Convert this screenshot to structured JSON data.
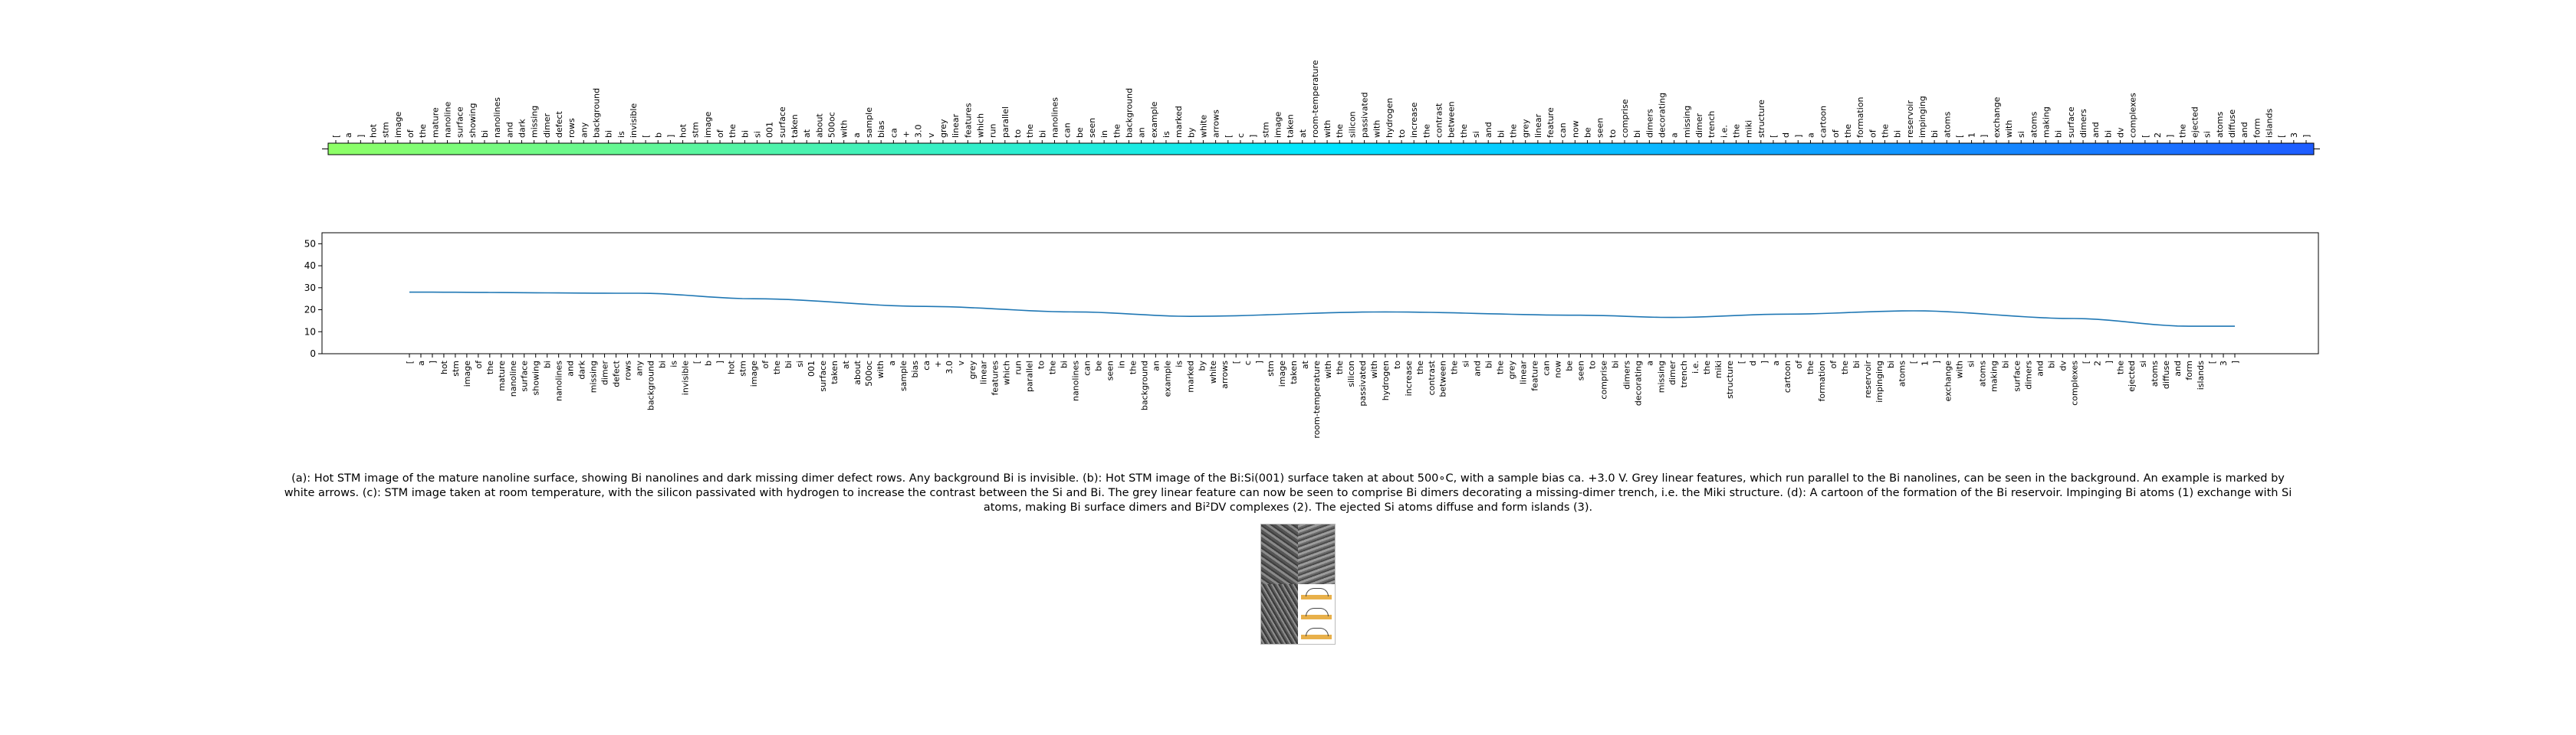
{
  "chart_data": [
    {
      "type": "colorbar",
      "colormap": "jet (green to blue segment)",
      "tick_labels": [
        "[",
        "a",
        "]",
        "hot",
        "stm",
        "image",
        "of",
        "the",
        "mature",
        "nanoline",
        "surface",
        "showing",
        "bi",
        "nanolines",
        "and",
        "dark",
        "missing",
        "dimer",
        "defect",
        "rows",
        "any",
        "background",
        "bi",
        "is",
        "invisible",
        "[",
        "b",
        "]",
        "hot",
        "stm",
        "image",
        "of",
        "the",
        "bi",
        "si",
        "001",
        "surface",
        "taken",
        "at",
        "about",
        "500oc",
        "with",
        "a",
        "sample",
        "bias",
        "ca",
        "+",
        "3.0",
        "v",
        "grey",
        "linear",
        "features",
        "which",
        "run",
        "parallel",
        "to",
        "the",
        "bi",
        "nanolines",
        "can",
        "be",
        "seen",
        "in",
        "the",
        "background",
        "an",
        "example",
        "is",
        "marked",
        "by",
        "white",
        "arrows",
        "[",
        "c",
        "]",
        "stm",
        "image",
        "taken",
        "at",
        "room-temperature",
        "with",
        "the",
        "silicon",
        "passivated",
        "with",
        "hydrogen",
        "to",
        "increase",
        "the",
        "contrast",
        "between",
        "the",
        "si",
        "and",
        "bi",
        "the",
        "grey",
        "linear",
        "feature",
        "can",
        "now",
        "be",
        "seen",
        "to",
        "comprise",
        "bi",
        "dimers",
        "decorating",
        "a",
        "missing",
        "dimer",
        "trench",
        "i.e.",
        "the",
        "miki",
        "structure",
        "[",
        "d",
        "]",
        "a",
        "cartoon",
        "of",
        "the",
        "formation",
        "of",
        "the",
        "bi",
        "reservoir",
        "impinging",
        "bi",
        "atoms",
        "[",
        "1",
        "]",
        "exchange",
        "with",
        "si",
        "atoms",
        "making",
        "bi",
        "surface",
        "dimers",
        "and",
        "bi",
        "dv",
        "complexes",
        "[",
        "2",
        "]",
        "the",
        "ejected",
        "si",
        "atoms",
        "diffuse",
        "and",
        "form",
        "islands",
        "[",
        "3",
        "]"
      ],
      "color_start": "#8eff66",
      "color_mid": "#00e5ff",
      "color_end": "#1e5cff"
    },
    {
      "type": "line",
      "x": [
        "[",
        "a",
        "]",
        "hot",
        "stm",
        "image",
        "of",
        "the",
        "mature",
        "nanoline",
        "surface",
        "showing",
        "bi",
        "nanolines",
        "and",
        "dark",
        "missing",
        "dimer",
        "defect",
        "rows",
        "any",
        "background",
        "bi",
        "is",
        "invisible",
        "[",
        "b",
        "]",
        "hot",
        "stm",
        "image",
        "of",
        "the",
        "bi",
        "si",
        "001",
        "surface",
        "taken",
        "at",
        "about",
        "500oc",
        "with",
        "a",
        "sample",
        "bias",
        "ca",
        "+",
        "3.0",
        "v",
        "grey",
        "linear",
        "features",
        "which",
        "run",
        "parallel",
        "to",
        "the",
        "bi",
        "nanolines",
        "can",
        "be",
        "seen",
        "in",
        "the",
        "background",
        "an",
        "example",
        "is",
        "marked",
        "by",
        "white",
        "arrows",
        "[",
        "c",
        "]",
        "stm",
        "image",
        "taken",
        "at",
        "room-temperature",
        "with",
        "the",
        "silicon",
        "passivated",
        "with",
        "hydrogen",
        "to",
        "increase",
        "the",
        "contrast",
        "between",
        "the",
        "si",
        "and",
        "bi",
        "the",
        "grey",
        "linear",
        "feature",
        "can",
        "now",
        "be",
        "seen",
        "to",
        "comprise",
        "bi",
        "dimers",
        "decorating",
        "a",
        "missing",
        "dimer",
        "trench",
        "i.e.",
        "the",
        "miki",
        "structure",
        "[",
        "d",
        "]",
        "a",
        "cartoon",
        "of",
        "the",
        "formation",
        "of",
        "the",
        "bi",
        "reservoir",
        "impinging",
        "bi",
        "atoms",
        "[",
        "1",
        "]",
        "exchange",
        "with",
        "si",
        "atoms",
        "making",
        "bi",
        "surface",
        "dimers",
        "and",
        "bi",
        "dv",
        "complexes",
        "[",
        "2",
        "]",
        "the",
        "ejected",
        "si",
        "atoms",
        "diffuse",
        "and",
        "form",
        "islands",
        "[",
        "3",
        "]"
      ],
      "control_points": [
        [
          0,
          28
        ],
        [
          20,
          27.5
        ],
        [
          30,
          25
        ],
        [
          45,
          21.5
        ],
        [
          58,
          19
        ],
        [
          68,
          17
        ],
        [
          85,
          19
        ],
        [
          102,
          17.5
        ],
        [
          110,
          16.5
        ],
        [
          120,
          18
        ],
        [
          131,
          19.5
        ],
        [
          145,
          16
        ],
        [
          155,
          12.5
        ]
      ],
      "y_ticks": [
        0,
        10,
        20,
        30,
        40,
        50
      ],
      "ylim": [
        0,
        55
      ],
      "series_color": "#1f77b4"
    }
  ],
  "caption": "(a): Hot STM image of the mature nanoline surface, showing Bi nanolines and dark missing dimer defect rows. Any background Bi is invisible. (b): Hot STM image of the Bi:Si(001) surface taken at about 500∘C, with a sample bias ca. +3.0 V. Grey linear features, which run parallel to the Bi nanolines, can be seen in the background. An example is marked by white arrows. (c): STM image taken at room temperature, with the silicon passivated with hydrogen to increase the contrast between the Si and Bi. The grey linear feature can now be seen to comprise Bi dimers decorating a missing-dimer trench, i.e. the Miki structure. (d): A cartoon of the formation of the Bi reservoir. Impinging Bi atoms (1) exchange with Si atoms, making Bi surface dimers and Bi²DV complexes (2). The ejected Si atoms diffuse and form islands (3).",
  "thumbnail": {
    "icon": "stm-composite-image-icon"
  }
}
